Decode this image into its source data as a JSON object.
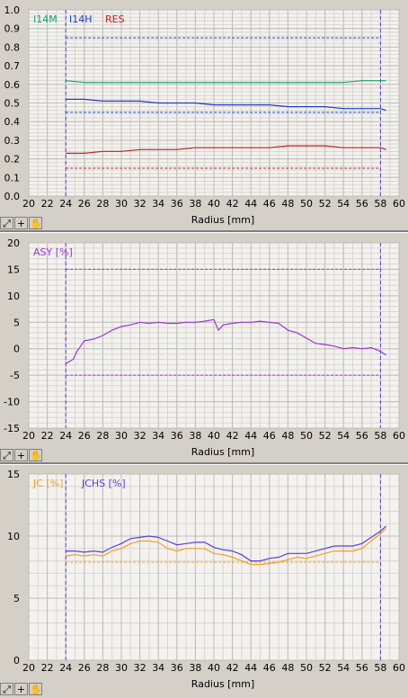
{
  "charts": [
    {
      "xlabel": "Radius [mm]",
      "ylim": [
        0,
        1.0
      ],
      "yticks": [
        "0.0",
        "0.1",
        "0.2",
        "0.3",
        "0.4",
        "0.5",
        "0.6",
        "0.7",
        "0.8",
        "0.9",
        "1.0"
      ],
      "legend": [
        {
          "name": "I14M",
          "color": "#1a9e70"
        },
        {
          "name": "I14H",
          "color": "#1f3fc4"
        },
        {
          "name": "RES",
          "color": "#c42020"
        }
      ]
    },
    {
      "xlabel": "Radius [mm]",
      "ylim": [
        -15,
        20
      ],
      "yticks": [
        "-15",
        "-10",
        "-5",
        "0",
        "5",
        "10",
        "15",
        "20"
      ],
      "legend": [
        {
          "name": "ASY [%]",
          "color": "#9d35d4"
        }
      ]
    },
    {
      "xlabel": "Radius [mm]",
      "ylim": [
        0,
        15
      ],
      "yticks": [
        "0",
        "5",
        "10",
        "15"
      ],
      "legend": [
        {
          "name": "JC [%]",
          "color": "#f0a020"
        },
        {
          "name": "JCHS [%]",
          "color": "#5b3fd4"
        }
      ]
    }
  ],
  "xticks": [
    "20",
    "22",
    "24",
    "26",
    "28",
    "30",
    "32",
    "34",
    "36",
    "38",
    "40",
    "42",
    "44",
    "46",
    "48",
    "50",
    "52",
    "54",
    "56",
    "58",
    "60"
  ],
  "toolbar": {
    "zoom_icon": "zoom-icon",
    "crosshair_icon": "crosshair-icon",
    "pan_icon": "hand-icon"
  },
  "chart_data": [
    {
      "type": "line",
      "title": "",
      "xlabel": "Radius [mm]",
      "ylabel": "",
      "xlim": [
        20,
        60
      ],
      "ylim": [
        0,
        1.0
      ],
      "grid": true,
      "legend_position": "top-left",
      "vlines": [
        24.0,
        58.0
      ],
      "hlines": [
        {
          "y": 0.85,
          "color": "#1f3fc4"
        },
        {
          "y": 0.45,
          "color": "#1f3fc4"
        },
        {
          "y": 0.15,
          "color": "#c42020"
        }
      ],
      "series": [
        {
          "name": "I14M",
          "color": "#1a9e70",
          "x": [
            24,
            26,
            28,
            30,
            32,
            34,
            36,
            38,
            40,
            42,
            44,
            46,
            48,
            50,
            52,
            54,
            56,
            58,
            58.6
          ],
          "y": [
            0.62,
            0.61,
            0.61,
            0.61,
            0.61,
            0.61,
            0.61,
            0.61,
            0.61,
            0.61,
            0.61,
            0.61,
            0.61,
            0.61,
            0.61,
            0.61,
            0.62,
            0.62,
            0.62
          ]
        },
        {
          "name": "I14H",
          "color": "#1f3fc4",
          "x": [
            24,
            26,
            28,
            30,
            32,
            34,
            36,
            38,
            40,
            42,
            44,
            46,
            48,
            50,
            52,
            54,
            56,
            58,
            58.6
          ],
          "y": [
            0.52,
            0.52,
            0.51,
            0.51,
            0.51,
            0.5,
            0.5,
            0.5,
            0.49,
            0.49,
            0.49,
            0.49,
            0.48,
            0.48,
            0.48,
            0.47,
            0.47,
            0.47,
            0.46
          ]
        },
        {
          "name": "RES",
          "color": "#c42020",
          "x": [
            24,
            26,
            28,
            30,
            32,
            34,
            36,
            38,
            40,
            42,
            44,
            46,
            48,
            50,
            52,
            54,
            56,
            58,
            58.6
          ],
          "y": [
            0.23,
            0.23,
            0.24,
            0.24,
            0.25,
            0.25,
            0.25,
            0.26,
            0.26,
            0.26,
            0.26,
            0.26,
            0.27,
            0.27,
            0.27,
            0.26,
            0.26,
            0.26,
            0.25
          ]
        }
      ]
    },
    {
      "type": "line",
      "title": "",
      "xlabel": "Radius [mm]",
      "ylabel": "",
      "xlim": [
        20,
        60
      ],
      "ylim": [
        -15,
        20
      ],
      "grid": true,
      "legend_position": "top-left",
      "vlines": [
        24.0,
        58.0
      ],
      "hlines": [
        {
          "y": 15,
          "color": "#9d35d4"
        },
        {
          "y": -5,
          "color": "#9d35d4"
        }
      ],
      "series": [
        {
          "name": "ASY [%]",
          "color": "#9d35d4",
          "x": [
            24,
            24.8,
            25.2,
            25.6,
            26,
            27,
            28,
            29,
            30,
            31,
            32,
            33,
            34,
            35,
            36,
            37,
            38,
            39,
            40,
            40.5,
            41,
            42,
            43,
            44,
            45,
            46,
            47,
            48,
            49,
            50,
            51,
            52,
            53,
            54,
            55,
            56,
            57,
            58,
            58.6
          ],
          "y": [
            -2.8,
            -2.0,
            -0.5,
            0.5,
            1.5,
            1.8,
            2.5,
            3.5,
            4.2,
            4.5,
            5.0,
            4.8,
            5.0,
            4.8,
            4.8,
            5.0,
            5.0,
            5.2,
            5.5,
            3.5,
            4.5,
            4.8,
            5.0,
            5.0,
            5.2,
            5.0,
            4.8,
            3.5,
            3.0,
            2.0,
            1.0,
            0.8,
            0.5,
            0.0,
            0.2,
            0.0,
            0.2,
            -0.5,
            -1.2
          ]
        }
      ]
    },
    {
      "type": "line",
      "title": "",
      "xlabel": "Radius [mm]",
      "ylabel": "",
      "xlim": [
        20,
        60
      ],
      "ylim": [
        0,
        15
      ],
      "grid": true,
      "legend_position": "top-left",
      "vlines": [
        24.0,
        58.0
      ],
      "hlines": [
        {
          "y": 7.9,
          "color": "#f0a020"
        }
      ],
      "series": [
        {
          "name": "JC [%]",
          "color": "#f0a020",
          "x": [
            24,
            25,
            26,
            27,
            28,
            29,
            30,
            31,
            32,
            33,
            34,
            35,
            36,
            37,
            38,
            39,
            40,
            41,
            42,
            43,
            44,
            45,
            46,
            47,
            48,
            49,
            50,
            51,
            52,
            53,
            54,
            55,
            56,
            57,
            58,
            58.6
          ],
          "y": [
            8.4,
            8.5,
            8.4,
            8.5,
            8.4,
            8.8,
            9.0,
            9.4,
            9.6,
            9.6,
            9.5,
            9.0,
            8.8,
            9.0,
            9.0,
            9.0,
            8.6,
            8.5,
            8.3,
            8.0,
            7.7,
            7.7,
            7.8,
            7.9,
            8.1,
            8.3,
            8.2,
            8.4,
            8.6,
            8.8,
            8.8,
            8.8,
            9.0,
            9.6,
            10.2,
            10.6
          ]
        },
        {
          "name": "JCHS [%]",
          "color": "#5b3fd4",
          "x": [
            24,
            25,
            26,
            27,
            28,
            29,
            30,
            31,
            32,
            33,
            34,
            35,
            36,
            37,
            38,
            39,
            40,
            41,
            42,
            43,
            44,
            45,
            46,
            47,
            48,
            49,
            50,
            51,
            52,
            53,
            54,
            55,
            56,
            57,
            58,
            58.6
          ],
          "y": [
            8.8,
            8.8,
            8.7,
            8.8,
            8.7,
            9.1,
            9.4,
            9.8,
            9.9,
            10.0,
            9.9,
            9.6,
            9.3,
            9.4,
            9.5,
            9.5,
            9.1,
            8.9,
            8.8,
            8.5,
            8.0,
            8.0,
            8.2,
            8.3,
            8.6,
            8.6,
            8.6,
            8.8,
            9.0,
            9.2,
            9.2,
            9.2,
            9.4,
            9.9,
            10.4,
            10.8
          ]
        }
      ]
    }
  ]
}
